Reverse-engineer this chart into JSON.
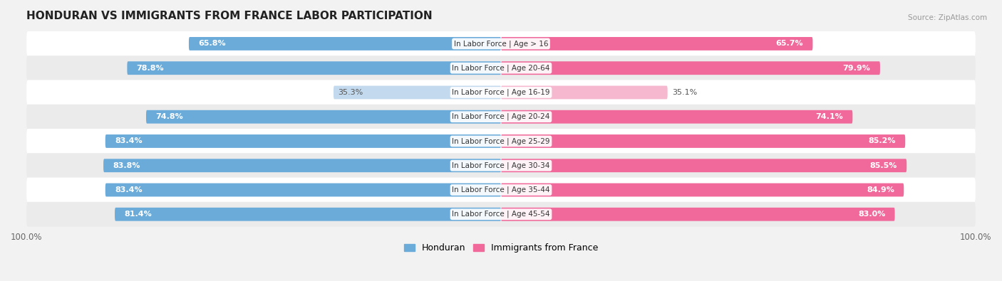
{
  "title": "HONDURAN VS IMMIGRANTS FROM FRANCE LABOR PARTICIPATION",
  "source": "Source: ZipAtlas.com",
  "categories": [
    "In Labor Force | Age > 16",
    "In Labor Force | Age 20-64",
    "In Labor Force | Age 16-19",
    "In Labor Force | Age 20-24",
    "In Labor Force | Age 25-29",
    "In Labor Force | Age 30-34",
    "In Labor Force | Age 35-44",
    "In Labor Force | Age 45-54"
  ],
  "honduran_values": [
    65.8,
    78.8,
    35.3,
    74.8,
    83.4,
    83.8,
    83.4,
    81.4
  ],
  "france_values": [
    65.7,
    79.9,
    35.1,
    74.1,
    85.2,
    85.5,
    84.9,
    83.0
  ],
  "honduran_color": "#6aabda",
  "honduran_color_light": "#c2d9ee",
  "france_color": "#f0699a",
  "france_color_light": "#f5b8ce",
  "bar_height": 0.55,
  "max_value": 100.0,
  "bg_color": "#f2f2f2",
  "row_colors": [
    "#ffffff",
    "#ebebeb"
  ],
  "title_fontsize": 11,
  "label_fontsize": 8,
  "tick_fontsize": 8.5,
  "legend_fontsize": 9,
  "cat_fontsize": 7.5
}
